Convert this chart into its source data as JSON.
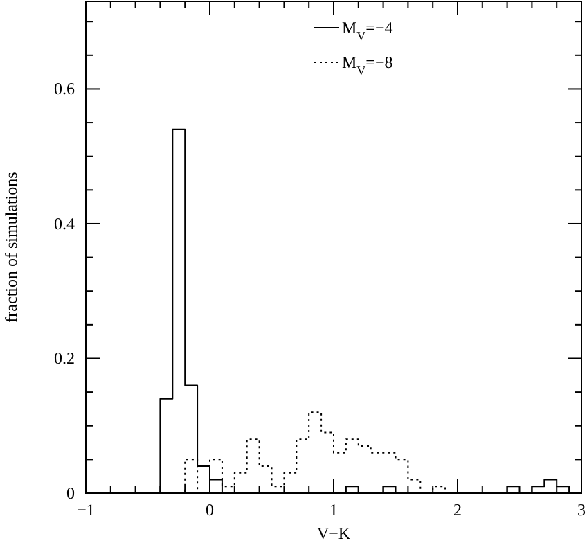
{
  "chart_data": {
    "type": "histogram",
    "xlabel": "V−K",
    "ylabel": "fraction of simulations",
    "bins": [
      -0.5,
      -0.4,
      -0.3,
      -0.2,
      -0.1,
      0,
      0.1,
      0.2,
      0.3,
      0.4,
      0.5,
      0.6,
      0.7,
      0.8,
      0.9,
      1,
      1.1,
      1.2,
      1.3,
      1.4,
      1.5,
      1.6,
      1.7,
      1.8,
      1.9,
      2,
      2.1,
      2.2,
      2.3,
      2.4,
      2.5,
      2.6,
      2.7,
      2.8,
      2.9,
      3
    ],
    "series": [
      {
        "name": "M$_{V}$=−4",
        "color": "#000000",
        "line_style": "solid",
        "values": [
          0,
          0.14,
          0.54,
          0.16,
          0.04,
          0.02,
          0,
          0,
          0,
          0,
          0,
          0,
          0,
          0,
          0,
          0,
          0.01,
          0,
          0,
          0.01,
          0,
          0,
          0,
          0,
          0,
          0,
          0,
          0,
          0,
          0.01,
          0,
          0.01,
          0.02,
          0.01,
          0
        ]
      },
      {
        "name": "M$_{V}$=−8",
        "color": "#000000",
        "line_style": "dotted",
        "values": [
          0,
          0,
          0,
          0.05,
          0,
          0.05,
          0.01,
          0.03,
          0.08,
          0.04,
          0.01,
          0.03,
          0.08,
          0.12,
          0.09,
          0.06,
          0.08,
          0.07,
          0.06,
          0.06,
          0.05,
          0.02,
          0,
          0.01,
          0,
          0,
          0,
          0,
          0,
          0,
          0,
          0,
          0,
          0,
          0
        ]
      }
    ],
    "xlim": [
      -1,
      3
    ],
    "xticks": [
      -1,
      {
        "value": -0.8,
        "label": null
      },
      {
        "value": -0.6,
        "label": null
      },
      {
        "value": -0.4,
        "label": null
      },
      {
        "value": -0.2,
        "label": null
      },
      0,
      {
        "value": 0.2,
        "label": null
      },
      {
        "value": 0.4,
        "label": null
      },
      {
        "value": 0.6,
        "label": null
      },
      {
        "value": 0.8,
        "label": null
      },
      1,
      {
        "value": 1.2,
        "label": null
      },
      {
        "value": 1.4,
        "label": null
      },
      {
        "value": 1.6,
        "label": null
      },
      {
        "value": 1.8,
        "label": null
      },
      2,
      {
        "value": 2.2,
        "label": null
      },
      {
        "value": 2.4,
        "label": null
      },
      {
        "value": 2.6,
        "label": null
      },
      {
        "value": 2.8,
        "label": null
      },
      3
    ],
    "ylim": [
      0,
      0.73
    ],
    "yticks": [
      0,
      {
        "value": 0.05,
        "label": null
      },
      {
        "value": 0.1,
        "label": null
      },
      {
        "value": 0.15,
        "label": null
      },
      0.2,
      {
        "value": 0.25,
        "label": null
      },
      {
        "value": 0.3,
        "label": null
      },
      {
        "value": 0.35,
        "label": null
      },
      0.4,
      {
        "value": 0.45,
        "label": null
      },
      {
        "value": 0.5,
        "label": null
      },
      {
        "value": 0.55,
        "label": null
      },
      0.6,
      {
        "value": 0.65,
        "label": null
      },
      {
        "value": 0.7,
        "label": null
      }
    ],
    "legend": "top right",
    "grid": false
  }
}
